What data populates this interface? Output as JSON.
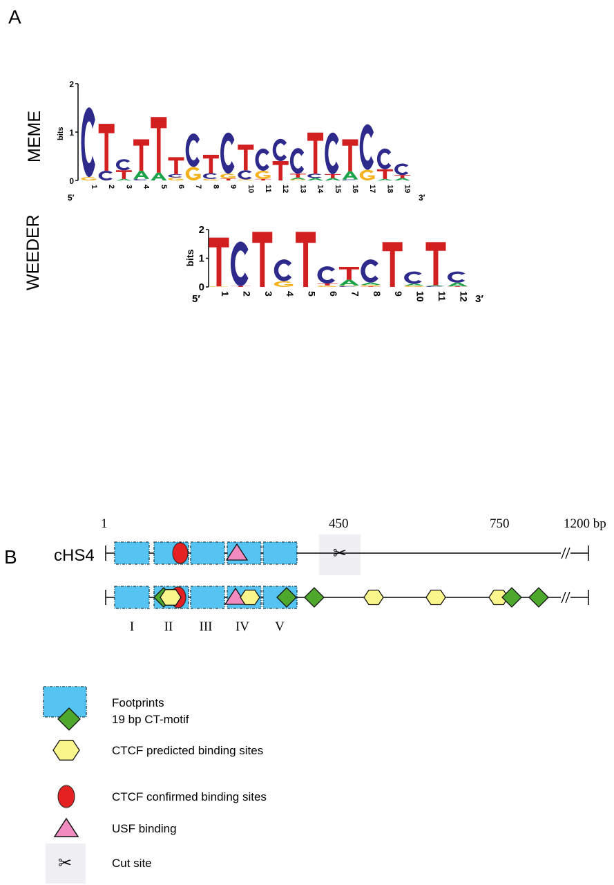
{
  "panel_a": {
    "label": "A",
    "colors": {
      "A": "#1ba34a",
      "C": "#2e2a8c",
      "G": "#f3b21c",
      "T": "#d21f1f"
    },
    "meme": {
      "name": "MEME",
      "ylabel": "bits",
      "yticks": [
        "0",
        "1",
        "2"
      ],
      "five_prime": "5′",
      "three_prime": "3′",
      "positions": [
        "1",
        "2",
        "3",
        "4",
        "5",
        "6",
        "7",
        "8",
        "9",
        "10",
        "11",
        "12",
        "13",
        "14",
        "15",
        "16",
        "17",
        "18",
        "19"
      ],
      "stacks": [
        [
          [
            "G",
            0.07
          ],
          [
            "C",
            1.44
          ]
        ],
        [
          [
            "C",
            0.2
          ],
          [
            "T",
            0.97
          ]
        ],
        [
          [
            "A",
            0.03
          ],
          [
            "T",
            0.18
          ],
          [
            "C",
            0.23
          ]
        ],
        [
          [
            "C",
            0.03
          ],
          [
            "A",
            0.17
          ],
          [
            "T",
            0.65
          ]
        ],
        [
          [
            "A",
            0.16
          ],
          [
            "T",
            1.15
          ]
        ],
        [
          [
            "G",
            0.06
          ],
          [
            "C",
            0.07
          ],
          [
            "T",
            0.35
          ]
        ],
        [
          [
            "G",
            0.28
          ],
          [
            "C",
            0.69
          ]
        ],
        [
          [
            "G",
            0.03
          ],
          [
            "C",
            0.12
          ],
          [
            "T",
            0.38
          ]
        ],
        [
          [
            "T",
            0.04
          ],
          [
            "G",
            0.1
          ],
          [
            "C",
            0.85
          ]
        ],
        [
          [
            "G",
            0.02
          ],
          [
            "C",
            0.19
          ],
          [
            "T",
            0.53
          ]
        ],
        [
          [
            "T",
            0.03
          ],
          [
            "G",
            0.17
          ],
          [
            "C",
            0.46
          ]
        ],
        [
          [
            "T",
            0.4
          ],
          [
            "C",
            0.46
          ]
        ],
        [
          [
            "G",
            0.02
          ],
          [
            "A",
            0.04
          ],
          [
            "T",
            0.08
          ],
          [
            "C",
            0.53
          ]
        ],
        [
          [
            "A",
            0.05
          ],
          [
            "C",
            0.09
          ],
          [
            "T",
            0.85
          ]
        ],
        [
          [
            "A",
            0.05
          ],
          [
            "T",
            0.08
          ],
          [
            "C",
            0.86
          ]
        ],
        [
          [
            "C",
            0.02
          ],
          [
            "A",
            0.17
          ],
          [
            "T",
            0.66
          ]
        ],
        [
          [
            "G",
            0.22
          ],
          [
            "C",
            0.94
          ]
        ],
        [
          [
            "A",
            0.03
          ],
          [
            "T",
            0.2
          ],
          [
            "C",
            0.43
          ]
        ],
        [
          [
            "A",
            0.05
          ],
          [
            "T",
            0.06
          ],
          [
            "C",
            0.24
          ]
        ]
      ]
    },
    "weeder": {
      "name": "WEEDER",
      "ylabel": "bits",
      "yticks": [
        "0",
        "1",
        "2"
      ],
      "five_prime": "5′",
      "three_prime": "3′",
      "positions": [
        "1",
        "2",
        "3",
        "4",
        "5",
        "6",
        "7",
        "8",
        "9",
        "10",
        "11",
        "12"
      ],
      "stacks": [
        [
          [
            "G",
            0.02
          ],
          [
            "T",
            1.7
          ]
        ],
        [
          [
            "T",
            0.03
          ],
          [
            "C",
            1.55
          ]
        ],
        [
          [
            "T",
            1.92
          ]
        ],
        [
          [
            "G",
            0.2
          ],
          [
            "C",
            0.76
          ]
        ],
        [
          [
            "T",
            1.92
          ]
        ],
        [
          [
            "G",
            0.05
          ],
          [
            "T",
            0.07
          ],
          [
            "C",
            0.6
          ]
        ],
        [
          [
            "C",
            0.03
          ],
          [
            "G",
            0.02
          ],
          [
            "A",
            0.2
          ],
          [
            "T",
            0.45
          ]
        ],
        [
          [
            "T",
            0.02
          ],
          [
            "G",
            0.05
          ],
          [
            "A",
            0.08
          ],
          [
            "C",
            0.81
          ]
        ],
        [
          [
            "T",
            1.56
          ]
        ],
        [
          [
            "G",
            0.05
          ],
          [
            "A",
            0.06
          ],
          [
            "C",
            0.43
          ]
        ],
        [
          [
            "C",
            0.03
          ],
          [
            "A",
            0.03
          ],
          [
            "T",
            1.5
          ]
        ],
        [
          [
            "T",
            0.02
          ],
          [
            "A",
            0.13
          ],
          [
            "C",
            0.39
          ]
        ]
      ]
    }
  },
  "panel_b": {
    "label": "B",
    "construct_name": "cHS4",
    "scale_labels": [
      "1",
      "450",
      "750",
      "1200 bp"
    ],
    "footprint_labels": [
      "I",
      "II",
      "III",
      "IV",
      "V"
    ],
    "colors": {
      "footprint": "#55c4f2",
      "ct_motif": "#4fa82e",
      "ctcf_predicted": "#fbf78c",
      "ctcf_confirmed": "#e42222",
      "usf": "#f28cc0",
      "cut_site_bg": "#f0f0f4"
    },
    "legend": [
      {
        "symbol": "footprint",
        "label": "Footprints"
      },
      {
        "symbol": "diamond",
        "label": "19 bp CT-motif"
      },
      {
        "symbol": "hexagon",
        "label": "CTCF predicted binding sites"
      },
      {
        "symbol": "ellipse",
        "label": "CTCF confirmed binding sites"
      },
      {
        "symbol": "triangle",
        "label": "USF binding"
      },
      {
        "symbol": "scissors",
        "label": "Cut site"
      }
    ],
    "scissors_glyph": "✂"
  }
}
